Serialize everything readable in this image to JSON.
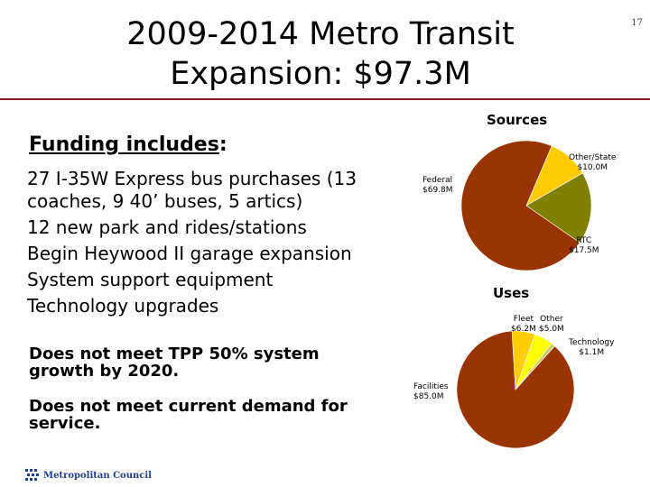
{
  "slide": {
    "title_line1": "2009-2014 Metro Transit",
    "title_line2": "Expansion:  $97.3M",
    "number": "17"
  },
  "funding": {
    "heading": "Funding includes",
    "heading_suffix": ":",
    "items": [
      "27 I-35W Express bus purchases (13 coaches, 9 40’ buses, 5 artics)",
      "12 new park and rides/stations",
      "Begin Heywood II garage expansion",
      "System support equipment",
      "Technology upgrades"
    ]
  },
  "notes": [
    "Does not meet TPP 50% system growth by 2020.",
    "Does not meet current demand for service."
  ],
  "logo": {
    "text": "Metropolitan Council"
  },
  "colors": {
    "rule": "#8a1c1c",
    "maroon": "#993300",
    "yellow": "#ffcc00",
    "olive": "#808000",
    "bright_yellow": "#ffff00"
  },
  "chart_data": [
    {
      "type": "pie",
      "title": "Sources",
      "slices": [
        {
          "name": "Federal",
          "value_label": "$69.8M",
          "value": 69.8,
          "color": "#993300"
        },
        {
          "name": "Other/State",
          "value_label": "$10.0M",
          "value": 10.0,
          "color": "#ffcc00"
        },
        {
          "name": "RTC",
          "value_label": "$17.5M",
          "value": 17.5,
          "color": "#808000"
        }
      ]
    },
    {
      "type": "pie",
      "title": "Uses",
      "slices": [
        {
          "name": "Facilities",
          "value_label": "$85.0M",
          "value": 85.0,
          "color": "#993300"
        },
        {
          "name": "Fleet",
          "value_label": "$6.2M",
          "value": 6.2,
          "color": "#ffcc00"
        },
        {
          "name": "Other",
          "value_label": "$5.0M",
          "value": 5.0,
          "color": "#ffff00"
        },
        {
          "name": "Technology",
          "value_label": "$1.1M",
          "value": 1.1,
          "color": "#cccc66"
        }
      ]
    }
  ]
}
